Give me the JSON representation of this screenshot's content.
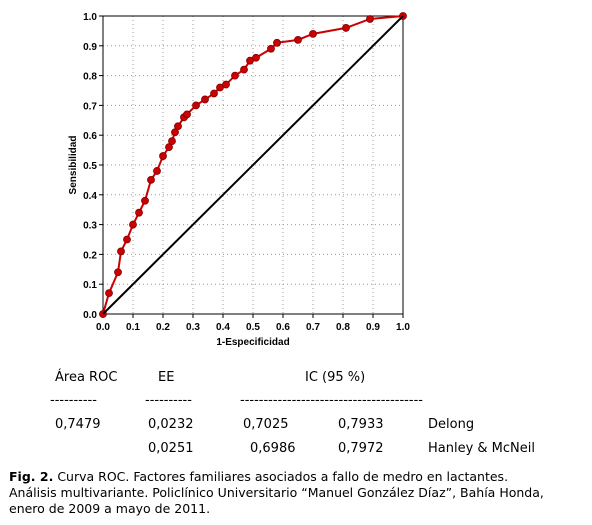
{
  "chart_data": {
    "type": "line",
    "xlabel": "1-Especificidad",
    "ylabel": "Sensibilidad",
    "xlim": [
      0,
      1
    ],
    "ylim": [
      0,
      1
    ],
    "xticks": [
      {
        "value": 0,
        "label": "0.0"
      },
      0.1,
      0.2,
      0.3,
      0.4,
      0.5,
      0.6,
      0.7,
      0.8,
      0.9,
      {
        "value": 1,
        "label": "1.0"
      }
    ],
    "yticks": [
      {
        "value": 0,
        "label": "0.0"
      },
      0.1,
      0.2,
      0.3,
      0.4,
      0.5,
      0.6,
      0.7,
      0.8,
      0.9,
      {
        "value": 1,
        "label": "1.0"
      }
    ],
    "grid": true,
    "series": [
      {
        "color": "#cc0000",
        "markers": true,
        "x": [
          0,
          0.02,
          0.05,
          0.06,
          0.08,
          0.1,
          0.12,
          0.14,
          0.16,
          0.18,
          0.2,
          0.22,
          0.23,
          0.24,
          0.25,
          0.27,
          0.28,
          0.31,
          0.34,
          0.37,
          0.39,
          0.41,
          0.44,
          0.47,
          0.49,
          0.51,
          0.56,
          0.58,
          0.65,
          0.7,
          0.81,
          0.89,
          1
        ],
        "values": [
          0,
          0.07,
          0.14,
          0.21,
          0.25,
          0.3,
          0.34,
          0.38,
          0.45,
          0.48,
          0.53,
          0.56,
          0.58,
          0.61,
          0.63,
          0.66,
          0.67,
          0.7,
          0.72,
          0.74,
          0.76,
          0.77,
          0.8,
          0.82,
          0.85,
          0.86,
          0.89,
          0.91,
          0.92,
          0.94,
          0.96,
          0.99,
          1
        ]
      },
      {
        "color": "#000000",
        "markers": false,
        "x": [
          0,
          1
        ],
        "values": [
          0,
          1
        ]
      }
    ]
  },
  "table": {
    "headers": {
      "area": "Área ROC",
      "ee": "EE",
      "ic": "IC (95 %)"
    },
    "dashes": {
      "area": "----------",
      "ee": "----------",
      "ic": "---------------------------------------"
    },
    "rows": [
      {
        "area": "0,7479",
        "ee": "0,0232",
        "ic_low": "0,7025",
        "ic_high": "0,7933",
        "method": "Delong"
      },
      {
        "ee": "0,0251",
        "ic_low": "0,6986",
        "ic_high": "0,7972",
        "method": "Hanley & McNeil"
      }
    ]
  },
  "caption": {
    "label": "Fig. 2.",
    "lines": [
      "Curva ROC. Factores familiares asociados a fallo de medro en lactantes.",
      "Análisis multivariante. Policlínico Universitario “Manuel González Díaz”, Bahía Honda,",
      "enero de 2009 a mayo de 2011."
    ]
  }
}
